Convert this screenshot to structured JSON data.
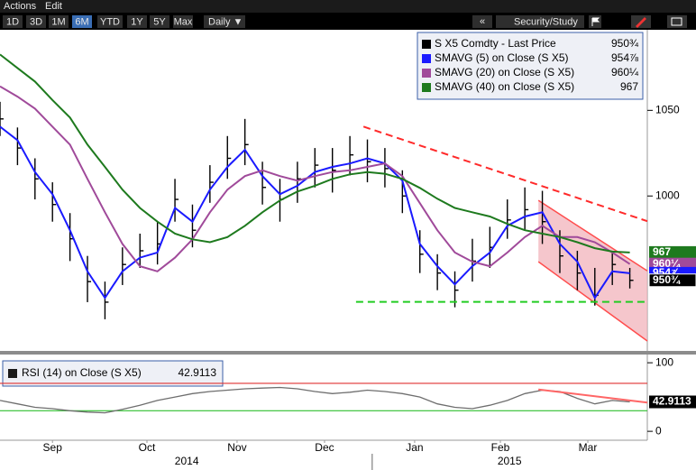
{
  "menu": [
    "Actions",
    "Edit"
  ],
  "toolbar": {
    "periods": [
      "1D",
      "3D",
      "1M",
      "6M",
      "YTD",
      "1Y",
      "5Y",
      "Max"
    ],
    "active_period": 3,
    "frequency": "Daily ▼",
    "collapse": "«",
    "study": "Security/Study"
  },
  "chart_data": [
    {
      "type": "ohlc",
      "x": [
        0,
        4,
        8,
        12,
        16,
        20,
        24,
        28,
        32,
        36,
        40,
        44,
        48,
        52,
        56,
        60,
        64,
        68,
        72,
        76,
        80,
        84,
        88,
        92,
        96,
        100,
        104,
        108,
        112,
        116,
        120,
        124,
        128,
        132,
        136,
        140,
        144
      ],
      "xlim": [
        0,
        148
      ],
      "ylim": [
        909,
        1096
      ],
      "yticks": [
        1000,
        1050
      ],
      "grid": false,
      "series": [
        {
          "name": "S X5 Comdty - Last Price",
          "color": "#000000",
          "last_label": "950¾",
          "high": [
            1055,
            1040,
            1022,
            1008,
            990,
            965,
            950,
            970,
            978,
            985,
            1010,
            995,
            1018,
            1035,
            1045,
            1020,
            1010,
            1020,
            1028,
            1028,
            1035,
            1033,
            1028,
            1015,
            980,
            966,
            956,
            975,
            982,
            998,
            1005,
            1003,
            980,
            968,
            958,
            968,
            958
          ],
          "low": [
            1035,
            1018,
            998,
            985,
            962,
            938,
            928,
            948,
            958,
            960,
            985,
            970,
            996,
            1010,
            1018,
            995,
            985,
            996,
            1005,
            1002,
            1012,
            1008,
            1005,
            990,
            955,
            945,
            935,
            950,
            958,
            975,
            980,
            972,
            955,
            945,
            936,
            948,
            946
          ],
          "close": [
            1045,
            1028,
            1010,
            995,
            975,
            950,
            938,
            960,
            968,
            972,
            998,
            980,
            1008,
            1022,
            1030,
            1005,
            998,
            1010,
            1018,
            1015,
            1024,
            1020,
            1016,
            1000,
            966,
            955,
            945,
            962,
            970,
            986,
            992,
            985,
            965,
            955,
            942,
            960,
            950.75
          ]
        },
        {
          "name": "SMAVG (5) on Close (S X5)",
          "color": "#1a1aff",
          "last_label": "954⅞",
          "values": [
            1040.5,
            1032.6,
            1014,
            1001,
            980,
            956,
            940.5,
            956,
            964,
            967,
            993,
            985,
            1003.7,
            1017,
            1027,
            1011.6,
            1001,
            1006,
            1014,
            1017,
            1019,
            1022,
            1019,
            1009,
            972,
            959,
            948.4,
            959,
            967,
            982.6,
            988,
            990.5,
            972,
            961.6,
            940.5,
            956,
            954.875
          ]
        },
        {
          "name": "SMAVG (20) on Close (S X5)",
          "color": "#a04a9a",
          "last_label": "960¼",
          "values": [
            1064,
            1058,
            1051,
            1040.5,
            1030,
            1010,
            990.5,
            972,
            959,
            956,
            964,
            974.7,
            990.5,
            1003.7,
            1011.6,
            1015,
            1011.6,
            1009,
            1011.6,
            1014,
            1015,
            1017,
            1019,
            1011.6,
            995.8,
            980,
            967,
            961.6,
            959,
            967,
            976,
            982.6,
            976,
            976,
            973,
            967,
            960.25
          ]
        },
        {
          "name": "SMAVG (40) on Close (S X5)",
          "color": "#1e7a1e",
          "last_label": "967",
          "values": [
            1082.6,
            1074.7,
            1066.8,
            1056,
            1045.8,
            1030,
            1017,
            1003.7,
            993,
            985,
            978,
            974.7,
            973,
            976,
            982.6,
            990.5,
            997.4,
            1002.6,
            1006,
            1010,
            1012.6,
            1014,
            1013,
            1010,
            1004.7,
            998.4,
            993,
            990.5,
            988,
            983.7,
            980,
            978,
            976,
            973,
            969.5,
            967.5,
            967
          ]
        }
      ],
      "annotations": [
        {
          "type": "trendline",
          "x": [
            83.1,
            148
          ],
          "y": [
            1040.5,
            985.3
          ],
          "color": "#ff2a2a",
          "dashed": true
        },
        {
          "type": "trendline",
          "x": [
            81.4,
            148
          ],
          "y": [
            938.2,
            938.2
          ],
          "color": "#22cc22",
          "dashed": true
        },
        {
          "type": "channel",
          "x": [
            123.1,
            148
          ],
          "upper": [
            997.4,
            956.3
          ],
          "lower": [
            961.6,
            915.3
          ],
          "color": "#ff4d4d",
          "fill": "#f2b3bb"
        }
      ]
    },
    {
      "type": "line",
      "x": [
        0,
        4,
        8,
        12,
        16,
        20,
        24,
        28,
        32,
        36,
        40,
        44,
        48,
        52,
        56,
        60,
        64,
        68,
        72,
        76,
        80,
        84,
        88,
        92,
        96,
        100,
        104,
        108,
        112,
        116,
        120,
        124,
        128,
        132,
        136,
        140,
        144
      ],
      "xlim": [
        0,
        148
      ],
      "ylim": [
        -13,
        112
      ],
      "yticks": [
        0,
        100
      ],
      "xticks": [
        {
          "value": 12,
          "label": "Sep"
        },
        {
          "value": 33.6,
          "label": "Oct"
        },
        {
          "value": 54.2,
          "label": "Nov"
        },
        {
          "value": 74.2,
          "label": "Dec"
        },
        {
          "value": 94.8,
          "label": "Jan"
        },
        {
          "value": 114.4,
          "label": "Feb"
        },
        {
          "value": 134.4,
          "label": "Mar"
        }
      ],
      "year_ticks": [
        {
          "value": 42.7,
          "label": "2014"
        },
        {
          "value": 116.5,
          "label": "2015"
        }
      ],
      "year_break": 85.1,
      "levels": [
        {
          "value": 70,
          "color": "#e03030"
        },
        {
          "value": 30,
          "color": "#2fbf2f"
        }
      ],
      "series": [
        {
          "name": "RSI (14) on Close (S X5)",
          "color": "#6e6e6e",
          "values": [
            45,
            40,
            35,
            33,
            30,
            28,
            27,
            32,
            38,
            45,
            50,
            55,
            58,
            60,
            62,
            63,
            64,
            62,
            58,
            55,
            57,
            60,
            58,
            55,
            50,
            40,
            35,
            33,
            38,
            45,
            55,
            60,
            58,
            48,
            40,
            45,
            42.9113
          ]
        }
      ],
      "annotations": [
        {
          "type": "trendline",
          "x": [
            123.1,
            148
          ],
          "y": [
            61,
            42
          ],
          "color": "#ff6666",
          "dashed": false
        }
      ]
    }
  ]
}
